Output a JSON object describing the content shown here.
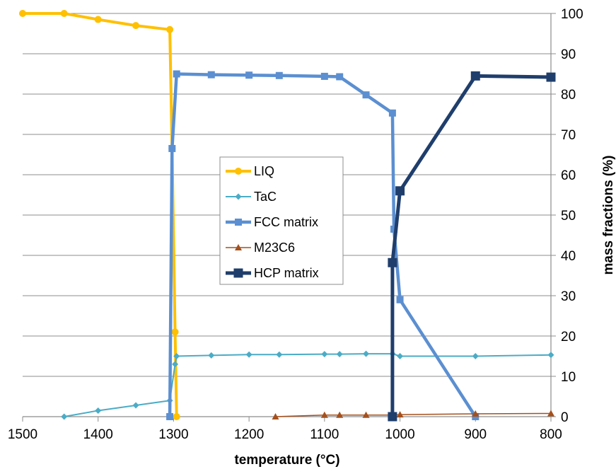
{
  "chart_data": {
    "type": "line",
    "xlabel": "temperature (°C)",
    "ylabel": "mass fractions (%)",
    "xlim": [
      1500,
      800
    ],
    "ylim": [
      0,
      100
    ],
    "x_ticks": [
      1500,
      1400,
      1300,
      1200,
      1100,
      1000,
      900,
      800
    ],
    "y_ticks": [
      0,
      10,
      20,
      30,
      40,
      50,
      60,
      70,
      80,
      90,
      100
    ],
    "y_axis_side": "right",
    "grid": "horizontal",
    "legend_position": "center",
    "series": [
      {
        "name": "LIQ",
        "color": "#FFC000",
        "marker": "circle",
        "points": [
          [
            1500,
            100
          ],
          [
            1445,
            100
          ],
          [
            1400,
            98.5
          ],
          [
            1350,
            97
          ],
          [
            1305,
            96
          ],
          [
            1302,
            66.5
          ],
          [
            1298,
            21
          ],
          [
            1296,
            0
          ]
        ]
      },
      {
        "name": "TaC",
        "color": "#4BACC6",
        "marker": "diamond",
        "points": [
          [
            1445,
            0
          ],
          [
            1400,
            1.5
          ],
          [
            1350,
            2.8
          ],
          [
            1305,
            4
          ],
          [
            1298,
            13
          ],
          [
            1296,
            15
          ],
          [
            1250,
            15.2
          ],
          [
            1200,
            15.4
          ],
          [
            1160,
            15.4
          ],
          [
            1100,
            15.5
          ],
          [
            1080,
            15.5
          ],
          [
            1045,
            15.6
          ],
          [
            1010,
            15.6
          ],
          [
            1000,
            15
          ],
          [
            900,
            15
          ],
          [
            800,
            15.3
          ]
        ]
      },
      {
        "name": "FCC matrix",
        "color": "#5B8FD1",
        "marker": "square",
        "points": [
          [
            1305,
            0
          ],
          [
            1302,
            66.5
          ],
          [
            1296,
            85
          ],
          [
            1250,
            84.8
          ],
          [
            1200,
            84.7
          ],
          [
            1160,
            84.6
          ],
          [
            1100,
            84.4
          ],
          [
            1080,
            84.3
          ],
          [
            1045,
            79.8
          ],
          [
            1010,
            75.3
          ],
          [
            1008,
            46.5
          ],
          [
            1000,
            29
          ],
          [
            900,
            0
          ]
        ]
      },
      {
        "name": "M23C6",
        "color": "#A5501C",
        "marker": "triangle",
        "points": [
          [
            1165,
            0
          ],
          [
            1100,
            0.4
          ],
          [
            1080,
            0.4
          ],
          [
            1045,
            0.4
          ],
          [
            1010,
            0.4
          ],
          [
            1000,
            0.5
          ],
          [
            900,
            0.7
          ],
          [
            800,
            0.8
          ]
        ]
      },
      {
        "name": "HCP matrix",
        "color": "#1F3E6C",
        "marker": "square",
        "points": [
          [
            1010,
            0
          ],
          [
            1010,
            38.2
          ],
          [
            1000,
            56
          ],
          [
            900,
            84.5
          ],
          [
            800,
            84.2
          ]
        ]
      }
    ]
  }
}
